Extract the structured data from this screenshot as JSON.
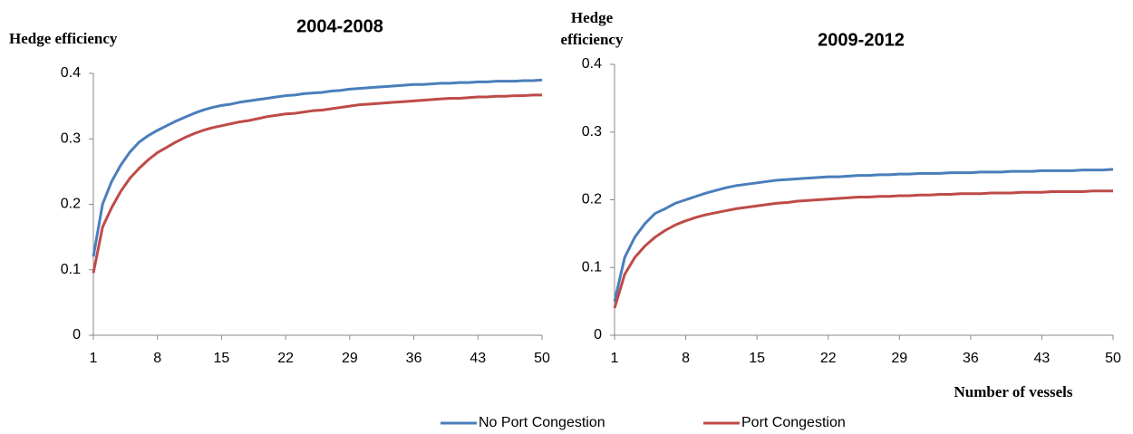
{
  "chart_data": [
    {
      "type": "line",
      "title": "2004-2008",
      "y_label": "Hedge efficiency",
      "x": [
        1,
        2,
        3,
        4,
        5,
        6,
        7,
        8,
        9,
        10,
        11,
        12,
        13,
        14,
        15,
        16,
        17,
        18,
        19,
        20,
        21,
        22,
        23,
        24,
        25,
        26,
        27,
        28,
        29,
        30,
        31,
        32,
        33,
        34,
        35,
        36,
        37,
        38,
        39,
        40,
        41,
        42,
        43,
        44,
        45,
        46,
        47,
        48,
        49,
        50
      ],
      "xlim": [
        1,
        50
      ],
      "xticks": [
        1,
        8,
        15,
        22,
        29,
        36,
        43,
        50
      ],
      "ylim": [
        0,
        0.4
      ],
      "yticks": [
        0,
        0.1,
        0.2,
        0.3,
        0.4
      ],
      "grid": false,
      "series": [
        {
          "name": "No Port Congestion",
          "color": "#4a7ebb",
          "values": [
            0.12,
            0.2,
            0.235,
            0.26,
            0.28,
            0.295,
            0.305,
            0.313,
            0.32,
            0.327,
            0.333,
            0.339,
            0.344,
            0.348,
            0.351,
            0.353,
            0.356,
            0.358,
            0.36,
            0.362,
            0.364,
            0.366,
            0.367,
            0.369,
            0.37,
            0.371,
            0.373,
            0.374,
            0.376,
            0.377,
            0.378,
            0.379,
            0.38,
            0.381,
            0.382,
            0.383,
            0.383,
            0.384,
            0.385,
            0.385,
            0.386,
            0.386,
            0.387,
            0.387,
            0.388,
            0.388,
            0.388,
            0.389,
            0.389,
            0.39
          ]
        },
        {
          "name": "Port Congestion",
          "color": "#be4b48",
          "values": [
            0.095,
            0.165,
            0.195,
            0.22,
            0.24,
            0.255,
            0.268,
            0.279,
            0.287,
            0.295,
            0.302,
            0.308,
            0.313,
            0.317,
            0.32,
            0.323,
            0.326,
            0.328,
            0.331,
            0.334,
            0.336,
            0.338,
            0.339,
            0.341,
            0.343,
            0.344,
            0.346,
            0.348,
            0.35,
            0.352,
            0.353,
            0.354,
            0.355,
            0.356,
            0.357,
            0.358,
            0.359,
            0.36,
            0.361,
            0.362,
            0.362,
            0.363,
            0.364,
            0.364,
            0.365,
            0.365,
            0.366,
            0.366,
            0.367,
            0.367
          ]
        }
      ]
    },
    {
      "type": "line",
      "title": "2009-2012",
      "y_label": "Hedge efficiency",
      "x_label": "Number of vessels",
      "x": [
        1,
        2,
        3,
        4,
        5,
        6,
        7,
        8,
        9,
        10,
        11,
        12,
        13,
        14,
        15,
        16,
        17,
        18,
        19,
        20,
        21,
        22,
        23,
        24,
        25,
        26,
        27,
        28,
        29,
        30,
        31,
        32,
        33,
        34,
        35,
        36,
        37,
        38,
        39,
        40,
        41,
        42,
        43,
        44,
        45,
        46,
        47,
        48,
        49,
        50
      ],
      "xlim": [
        1,
        50
      ],
      "xticks": [
        1,
        8,
        15,
        22,
        29,
        36,
        43,
        50
      ],
      "ylim": [
        0,
        0.4
      ],
      "yticks": [
        0,
        0.1,
        0.2,
        0.3,
        0.4
      ],
      "grid": false,
      "series": [
        {
          "name": "No Port Congestion",
          "color": "#4a7ebb",
          "values": [
            0.05,
            0.115,
            0.145,
            0.165,
            0.18,
            0.187,
            0.195,
            0.2,
            0.205,
            0.21,
            0.214,
            0.218,
            0.221,
            0.223,
            0.225,
            0.227,
            0.229,
            0.23,
            0.231,
            0.232,
            0.233,
            0.234,
            0.234,
            0.235,
            0.236,
            0.236,
            0.237,
            0.237,
            0.238,
            0.238,
            0.239,
            0.239,
            0.239,
            0.24,
            0.24,
            0.24,
            0.241,
            0.241,
            0.241,
            0.242,
            0.242,
            0.242,
            0.243,
            0.243,
            0.243,
            0.243,
            0.244,
            0.244,
            0.244,
            0.245
          ]
        },
        {
          "name": "Port Congestion",
          "color": "#be4b48",
          "values": [
            0.04,
            0.09,
            0.115,
            0.132,
            0.145,
            0.155,
            0.163,
            0.169,
            0.174,
            0.178,
            0.181,
            0.184,
            0.187,
            0.189,
            0.191,
            0.193,
            0.195,
            0.196,
            0.198,
            0.199,
            0.2,
            0.201,
            0.202,
            0.203,
            0.204,
            0.204,
            0.205,
            0.205,
            0.206,
            0.206,
            0.207,
            0.207,
            0.208,
            0.208,
            0.209,
            0.209,
            0.209,
            0.21,
            0.21,
            0.21,
            0.211,
            0.211,
            0.211,
            0.212,
            0.212,
            0.212,
            0.212,
            0.213,
            0.213,
            0.213
          ]
        }
      ]
    }
  ]
}
